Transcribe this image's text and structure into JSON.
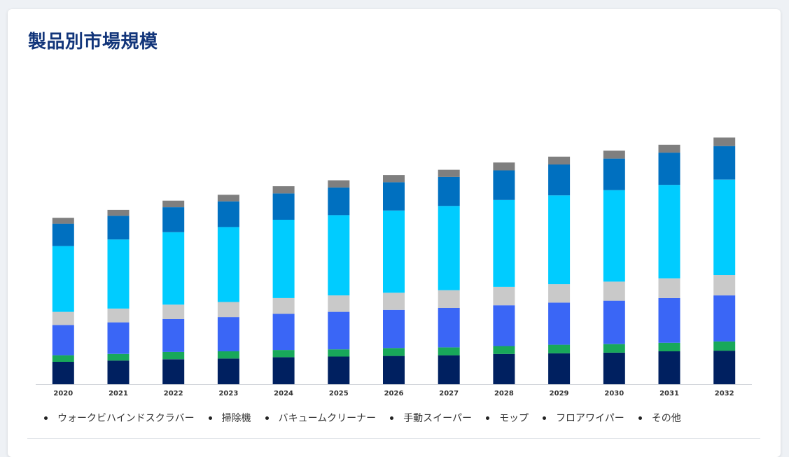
{
  "page_title": "製品別市場規模",
  "chart_data": {
    "type": "bar",
    "stacked": true,
    "categories": [
      "2020",
      "2021",
      "2022",
      "2023",
      "2024",
      "2025",
      "2026",
      "2027",
      "2028",
      "2029",
      "2030",
      "2031",
      "2032"
    ],
    "series": [
      {
        "name": "ウォークビハインドスクラバー",
        "color": "#002060",
        "values": [
          34,
          36,
          38,
          39,
          41,
          42,
          43,
          44,
          46,
          47,
          48,
          50,
          51
        ]
      },
      {
        "name": "掃除機",
        "color": "#18a85a",
        "values": [
          10,
          10,
          11,
          11,
          11,
          11,
          12,
          12,
          12,
          13,
          13,
          13,
          14
        ]
      },
      {
        "name": "バキュームクリーナー",
        "color": "#3a66f6",
        "values": [
          46,
          48,
          50,
          52,
          55,
          57,
          58,
          60,
          62,
          64,
          66,
          68,
          70
        ]
      },
      {
        "name": "手動スイーパー",
        "color": "#c9c9c9",
        "values": [
          20,
          21,
          22,
          23,
          24,
          25,
          26,
          27,
          28,
          28,
          29,
          30,
          31
        ]
      },
      {
        "name": "モップ",
        "color": "#00ccff",
        "values": [
          100,
          105,
          110,
          114,
          119,
          122,
          125,
          128,
          132,
          135,
          139,
          142,
          145
        ]
      },
      {
        "name": "フロアワイパー",
        "color": "#0070c0",
        "values": [
          34,
          36,
          38,
          39,
          40,
          42,
          43,
          44,
          45,
          47,
          48,
          49,
          51
        ]
      },
      {
        "name": "その他",
        "color": "#7f7f7f",
        "values": [
          9,
          9,
          10,
          10,
          11,
          11,
          11,
          11,
          12,
          12,
          12,
          12,
          13
        ]
      }
    ],
    "ylim": [
      0,
      400
    ],
    "grid": false,
    "legend_position": "bottom",
    "xlabel": "",
    "ylabel": ""
  }
}
